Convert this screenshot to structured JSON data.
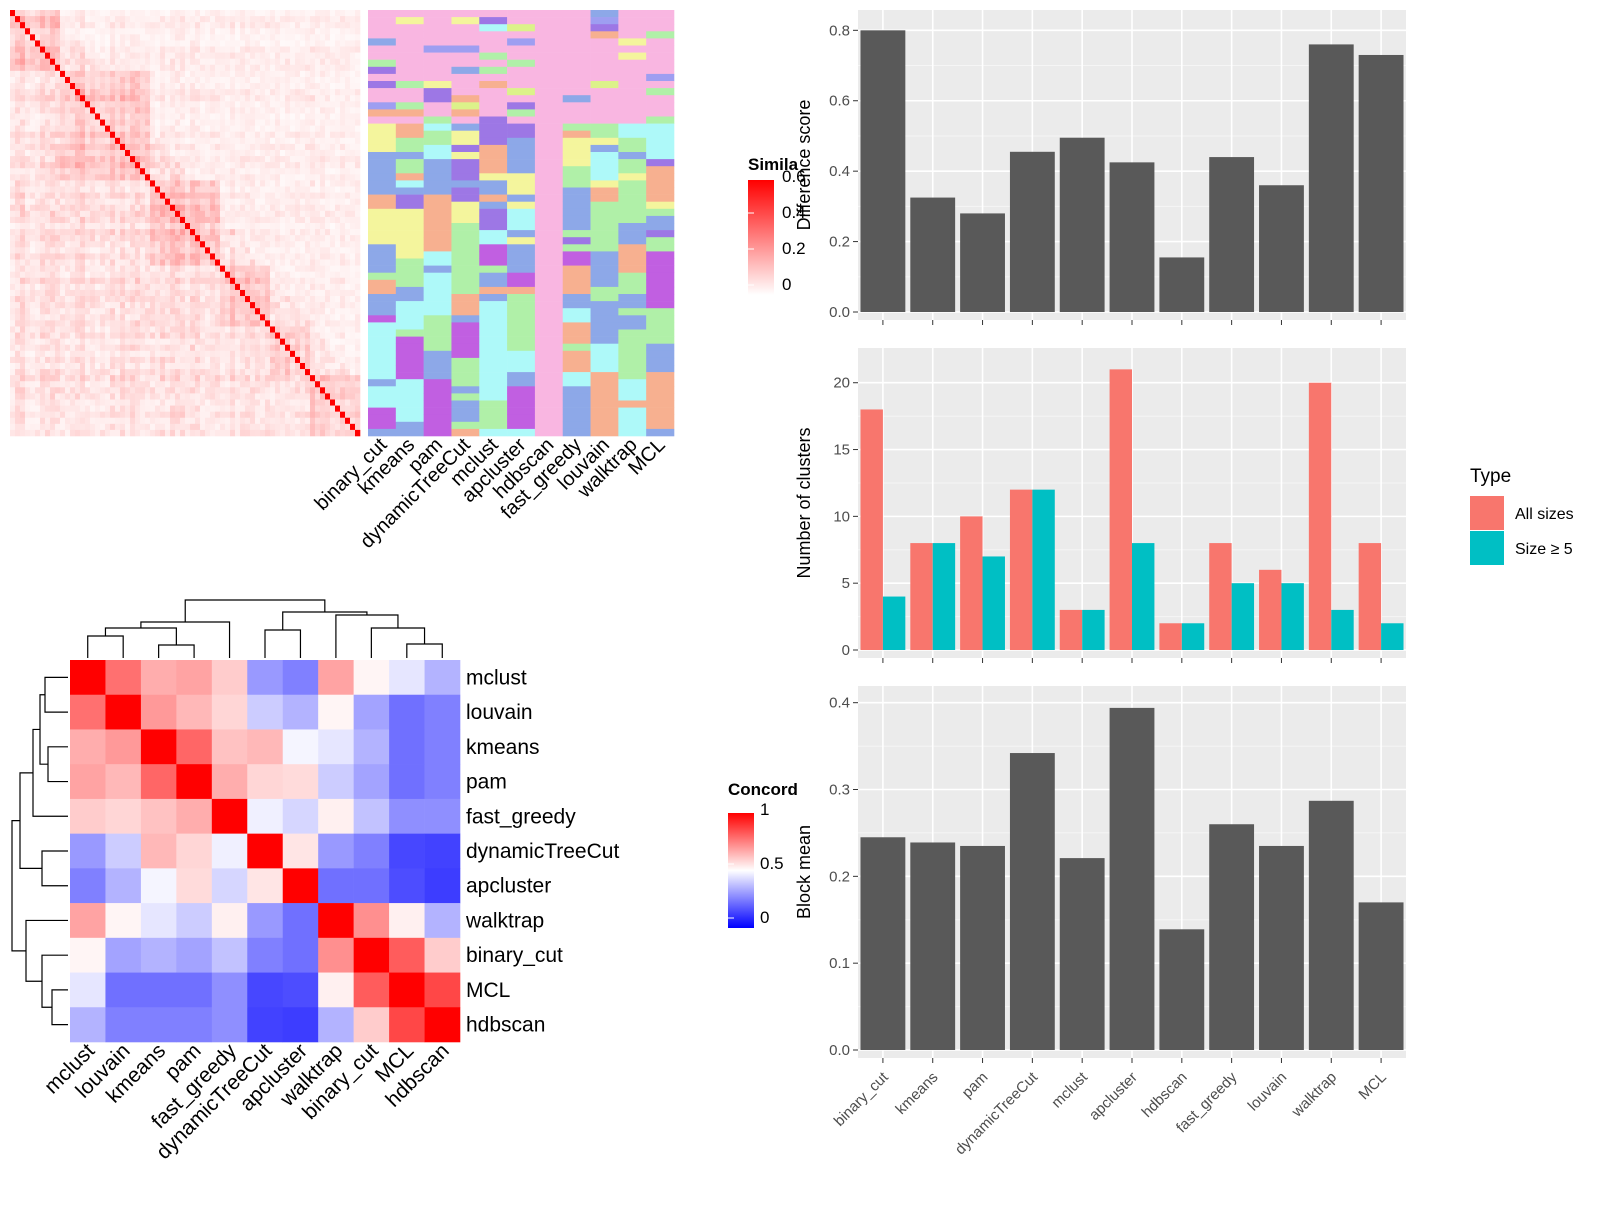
{
  "methods_similarity_axis": [
    "binary_cut",
    "kmeans",
    "pam",
    "dynamicTreeCut",
    "mclust",
    "apcluster",
    "hdbscan",
    "fast_greedy",
    "louvain",
    "walktrap",
    "MCL"
  ],
  "chart_data": [
    {
      "type": "heatmap",
      "id": "similarity-matrix",
      "description_values": "diagonal block-structured gene similarity matrix",
      "legend": {
        "title": "Simila",
        "ticks": [
          "0",
          "0.2",
          "0.4",
          "0.6"
        ],
        "colors": [
          "#FFFFFF",
          "#FF0000"
        ]
      }
    },
    {
      "type": "heatmap",
      "id": "cluster-assignment",
      "columns": [
        "binary_cut",
        "kmeans",
        "pam",
        "dynamicTreeCut",
        "mclust",
        "apcluster",
        "hdbscan",
        "fast_greedy",
        "louvain",
        "walktrap",
        "MCL"
      ],
      "palette": [
        "#F9B6E1",
        "#AEF9F9",
        "#8DA8E8",
        "#B0F0A8",
        "#F7B090",
        "#9D77E5",
        "#F4F59D",
        "#DCF28A",
        "#9E9EF1",
        "#8CF0B0",
        "#C15FE1",
        "#F0A8A0"
      ]
    },
    {
      "type": "bar",
      "id": "difference-score",
      "categories": [
        "binary_cut",
        "kmeans",
        "pam",
        "dynamicTreeCut",
        "mclust",
        "apcluster",
        "hdbscan",
        "fast_greedy",
        "louvain",
        "walktrap",
        "MCL"
      ],
      "values": [
        0.8,
        0.325,
        0.28,
        0.455,
        0.495,
        0.425,
        0.155,
        0.44,
        0.36,
        0.76,
        0.73
      ],
      "ylabel": "Difference score",
      "ylim": [
        0,
        0.835
      ],
      "yticks": [
        "0.0",
        "0.2",
        "0.4",
        "0.6",
        "0.8"
      ],
      "color": "#595959"
    },
    {
      "type": "bar",
      "id": "number-of-clusters",
      "categories": [
        "binary_cut",
        "kmeans",
        "pam",
        "dynamicTreeCut",
        "mclust",
        "apcluster",
        "hdbscan",
        "fast_greedy",
        "louvain",
        "walktrap",
        "MCL"
      ],
      "series": [
        {
          "name": "All sizes",
          "values": [
            18,
            8,
            10,
            12,
            3,
            21,
            2,
            8,
            6,
            20,
            8
          ],
          "color": "#F8766D"
        },
        {
          "name": "Size ≥ 5",
          "values": [
            4,
            8,
            7,
            12,
            3,
            8,
            2,
            5,
            5,
            3,
            2
          ],
          "color": "#00BFC4"
        }
      ],
      "ylabel": "Number of clusters",
      "ylim": [
        0,
        22
      ],
      "yticks": [
        "0",
        "5",
        "10",
        "15",
        "20"
      ],
      "legend": {
        "title": "Type",
        "placement": "right"
      }
    },
    {
      "type": "bar",
      "id": "block-mean",
      "categories": [
        "binary_cut",
        "kmeans",
        "pam",
        "dynamicTreeCut",
        "mclust",
        "apcluster",
        "hdbscan",
        "fast_greedy",
        "louvain",
        "walktrap",
        "MCL"
      ],
      "values": [
        0.245,
        0.239,
        0.235,
        0.342,
        0.221,
        0.394,
        0.139,
        0.26,
        0.235,
        0.287,
        0.17
      ],
      "ylabel": "Block mean",
      "ylim": [
        0,
        0.41
      ],
      "yticks": [
        "0.0",
        "0.1",
        "0.2",
        "0.3",
        "0.4"
      ],
      "color": "#595959"
    },
    {
      "type": "heatmap",
      "id": "concordance",
      "rows": [
        "mclust",
        "louvain",
        "kmeans",
        "pam",
        "fast_greedy",
        "dynamicTreeCut",
        "apcluster",
        "walktrap",
        "binary_cut",
        "MCL",
        "hdbscan"
      ],
      "columns": [
        "mclust",
        "louvain",
        "kmeans",
        "pam",
        "fast_greedy",
        "dynamicTreeCut",
        "apcluster",
        "walktrap",
        "binary_cut",
        "MCL",
        "hdbscan"
      ],
      "values": [
        [
          1.0,
          0.78,
          0.66,
          0.68,
          0.6,
          0.3,
          0.25,
          0.68,
          0.52,
          0.45,
          0.35
        ],
        [
          0.78,
          1.0,
          0.7,
          0.64,
          0.58,
          0.4,
          0.35,
          0.52,
          0.32,
          0.22,
          0.25
        ],
        [
          0.66,
          0.7,
          1.0,
          0.8,
          0.62,
          0.64,
          0.48,
          0.45,
          0.35,
          0.22,
          0.25
        ],
        [
          0.68,
          0.64,
          0.8,
          1.0,
          0.66,
          0.58,
          0.57,
          0.4,
          0.32,
          0.22,
          0.25
        ],
        [
          0.6,
          0.58,
          0.62,
          0.66,
          1.0,
          0.47,
          0.42,
          0.53,
          0.38,
          0.28,
          0.28
        ],
        [
          0.3,
          0.4,
          0.64,
          0.58,
          0.47,
          1.0,
          0.55,
          0.3,
          0.25,
          0.14,
          0.13
        ],
        [
          0.25,
          0.35,
          0.48,
          0.57,
          0.42,
          0.55,
          1.0,
          0.22,
          0.22,
          0.15,
          0.12
        ],
        [
          0.68,
          0.52,
          0.45,
          0.4,
          0.53,
          0.3,
          0.22,
          1.0,
          0.72,
          0.53,
          0.35
        ],
        [
          0.52,
          0.32,
          0.35,
          0.32,
          0.38,
          0.25,
          0.22,
          0.72,
          1.0,
          0.82,
          0.6
        ],
        [
          0.45,
          0.22,
          0.22,
          0.22,
          0.28,
          0.14,
          0.15,
          0.53,
          0.82,
          1.0,
          0.86
        ],
        [
          0.35,
          0.25,
          0.25,
          0.25,
          0.28,
          0.13,
          0.12,
          0.35,
          0.6,
          0.86,
          1.0
        ]
      ],
      "legend": {
        "title": "Concord",
        "ticks": [
          "0",
          "0.5",
          "1"
        ],
        "colors": [
          "#0000FF",
          "#FFFFFF",
          "#FF0000"
        ]
      }
    }
  ]
}
